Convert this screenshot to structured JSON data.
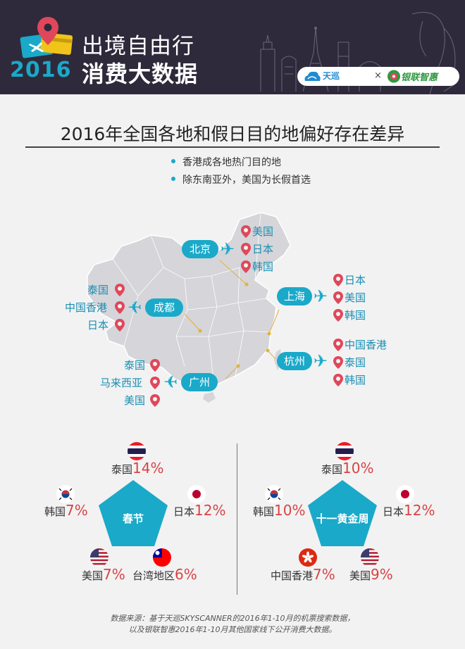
{
  "header": {
    "year": "2016",
    "title_line1": "出境自由行",
    "title_line2": "消费大数据",
    "partner1": "天巡",
    "partner_sep": "×",
    "partner2": "银联智惠"
  },
  "main_title": "2016年全国各地和假日目的地偏好存在差异",
  "bullets": [
    "香港成各地热门目的地",
    "除东南亚外，美国为长假首选"
  ],
  "cities": [
    {
      "name": "北京",
      "destinations": [
        "美国",
        "日本",
        "韩国"
      ]
    },
    {
      "name": "成都",
      "destinations": [
        "泰国",
        "中国香港",
        "日本"
      ]
    },
    {
      "name": "上海",
      "destinations": [
        "日本",
        "美国",
        "韩国"
      ]
    },
    {
      "name": "杭州",
      "destinations": [
        "中国香港",
        "泰国",
        "韩国"
      ]
    },
    {
      "name": "广州",
      "destinations": [
        "泰国",
        "马来西亚",
        "美国"
      ]
    }
  ],
  "holidays": [
    {
      "name": "春节",
      "items": [
        {
          "country": "泰国",
          "pct": "14%",
          "flag": "thailand-flag"
        },
        {
          "country": "日本",
          "pct": "12%",
          "flag": "japan-flag"
        },
        {
          "country": "台湾地区",
          "pct": "6%",
          "flag": "taiwan-flag"
        },
        {
          "country": "美国",
          "pct": "7%",
          "flag": "usa-flag"
        },
        {
          "country": "韩国",
          "pct": "7%",
          "flag": "korea-flag"
        }
      ]
    },
    {
      "name": "十一黄金周",
      "items": [
        {
          "country": "泰国",
          "pct": "10%",
          "flag": "thailand-flag"
        },
        {
          "country": "日本",
          "pct": "12%",
          "flag": "japan-flag"
        },
        {
          "country": "美国",
          "pct": "9%",
          "flag": "usa-flag"
        },
        {
          "country": "中国香港",
          "pct": "7%",
          "flag": "hongkong-flag"
        },
        {
          "country": "韩国",
          "pct": "10%",
          "flag": "korea-flag"
        }
      ]
    }
  ],
  "source": [
    "数据来源：基于天巡SKYSCANNER的2016年1-10月的机票搜索数据，",
    "以及银联智惠2016年1-10月其他国家线下公开消费大数据。"
  ],
  "colors": {
    "header_bg": "#2e2a3b",
    "accent": "#1aa9c9",
    "pin": "#e0475a",
    "percent": "#d94343",
    "map_fill": "#d5d5da",
    "background": "#f2f2f3"
  }
}
